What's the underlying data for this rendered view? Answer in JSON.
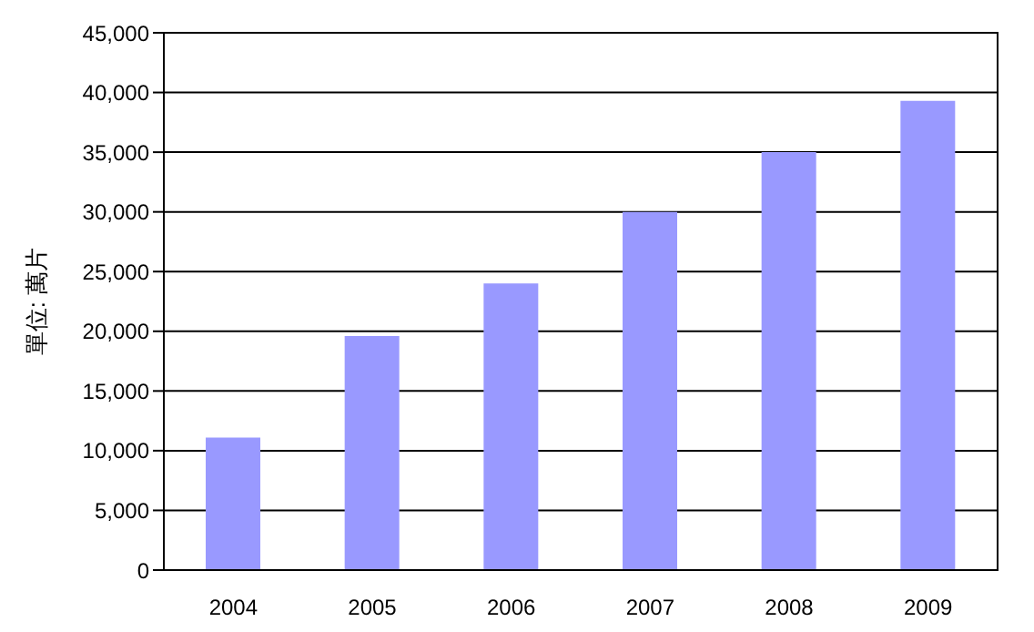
{
  "chart_data": {
    "type": "bar",
    "ylabel": "單位: 萬片",
    "categories": [
      "2004",
      "2005",
      "2006",
      "2007",
      "2008",
      "2009"
    ],
    "values": [
      11100,
      19600,
      24000,
      30000,
      35000,
      39300
    ],
    "color": "#9999ff",
    "ylim": [
      0,
      45000
    ],
    "yticks": [
      0,
      {
        "value": 5000,
        "label": "5,000"
      },
      {
        "value": 10000,
        "label": "10,000"
      },
      {
        "value": 15000,
        "label": "15,000"
      },
      {
        "value": 20000,
        "label": "20,000"
      },
      {
        "value": 25000,
        "label": "25,000"
      },
      {
        "value": 30000,
        "label": "30,000"
      },
      {
        "value": 35000,
        "label": "35,000"
      },
      {
        "value": 40000,
        "label": "40,000"
      },
      {
        "value": 45000,
        "label": "45,000"
      }
    ],
    "grid": "y",
    "legend": false
  }
}
